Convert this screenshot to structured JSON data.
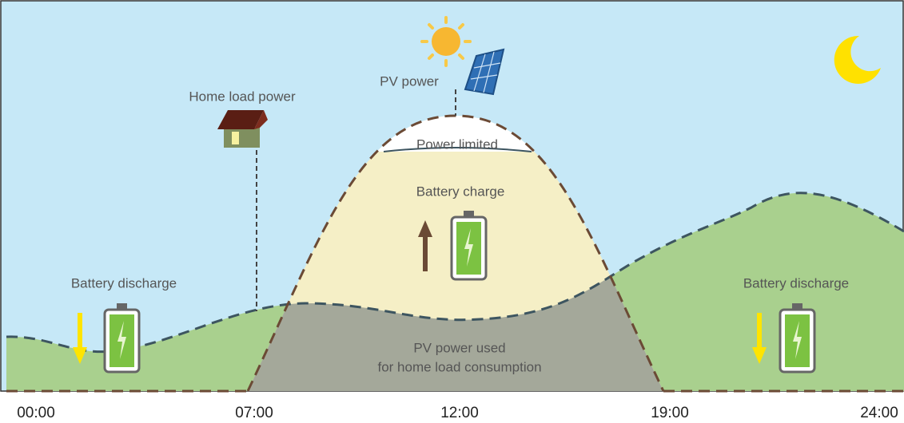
{
  "labels": {
    "pv_power": "PV power",
    "home_load_power": "Home load power",
    "power_limited": "Power limited",
    "battery_charge": "Battery charge",
    "battery_discharge": [
      "Battery discharge",
      "Battery discharge"
    ],
    "pv_power_used": [
      "PV power used",
      "for home load consumption"
    ]
  },
  "time_axis": [
    "00:00",
    "07:00",
    "12:00",
    "19:00",
    "24:00"
  ]
}
